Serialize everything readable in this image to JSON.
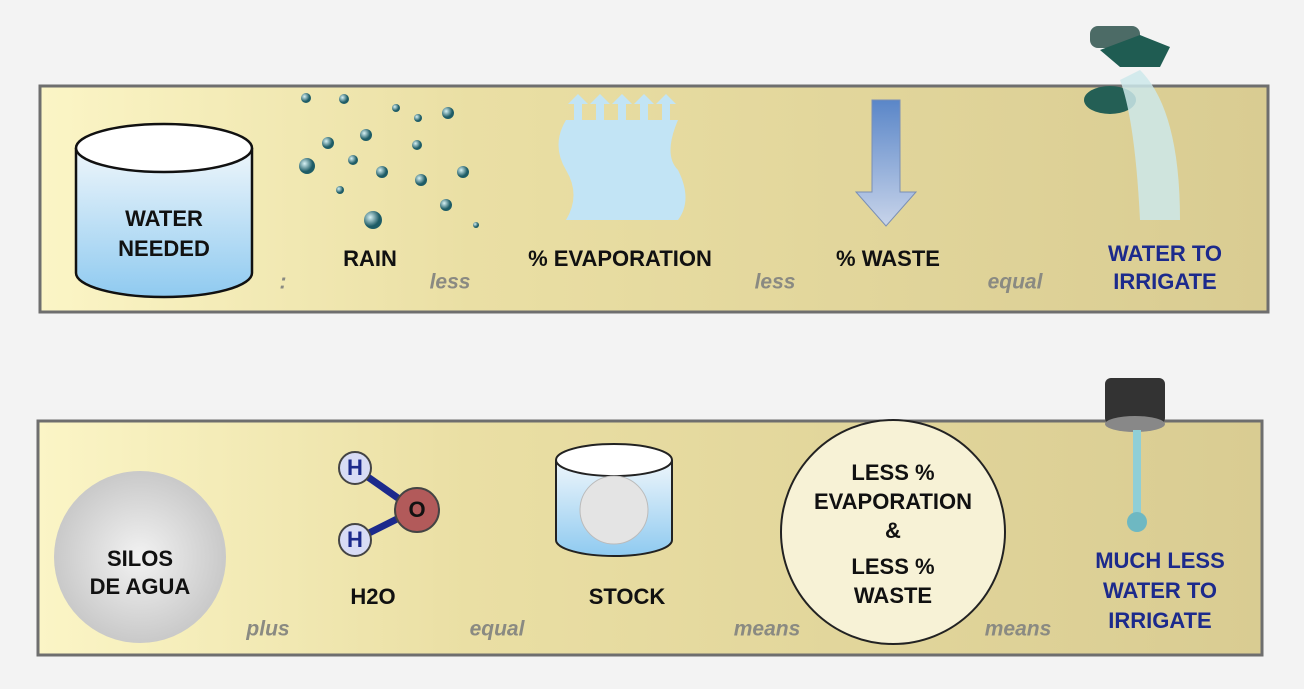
{
  "rows": [
    {
      "items": [
        {
          "lines": [
            "WATER",
            "NEEDED"
          ]
        },
        {
          "lines": [
            "RAIN"
          ]
        },
        {
          "lines": [
            "% EVAPORATION"
          ]
        },
        {
          "lines": [
            "% WASTE"
          ]
        },
        {
          "lines": [
            "WATER TO",
            "IRRIGATE"
          ]
        }
      ],
      "operators": [
        ":",
        "less",
        "less",
        "equal"
      ]
    },
    {
      "items": [
        {
          "lines": [
            "SILOS",
            "DE AGUA"
          ]
        },
        {
          "lines": [
            "H2O"
          ],
          "atoms": [
            "H",
            "O",
            "H"
          ]
        },
        {
          "lines": [
            "STOCK"
          ]
        },
        {
          "lines": [
            "LESS %",
            "EVAPORATION",
            "&",
            "LESS %",
            "WASTE"
          ]
        },
        {
          "lines": [
            "MUCH LESS",
            "WATER TO",
            "IRRIGATE"
          ]
        }
      ],
      "operators": [
        "plus",
        "equal",
        "means",
        "means"
      ]
    }
  ]
}
